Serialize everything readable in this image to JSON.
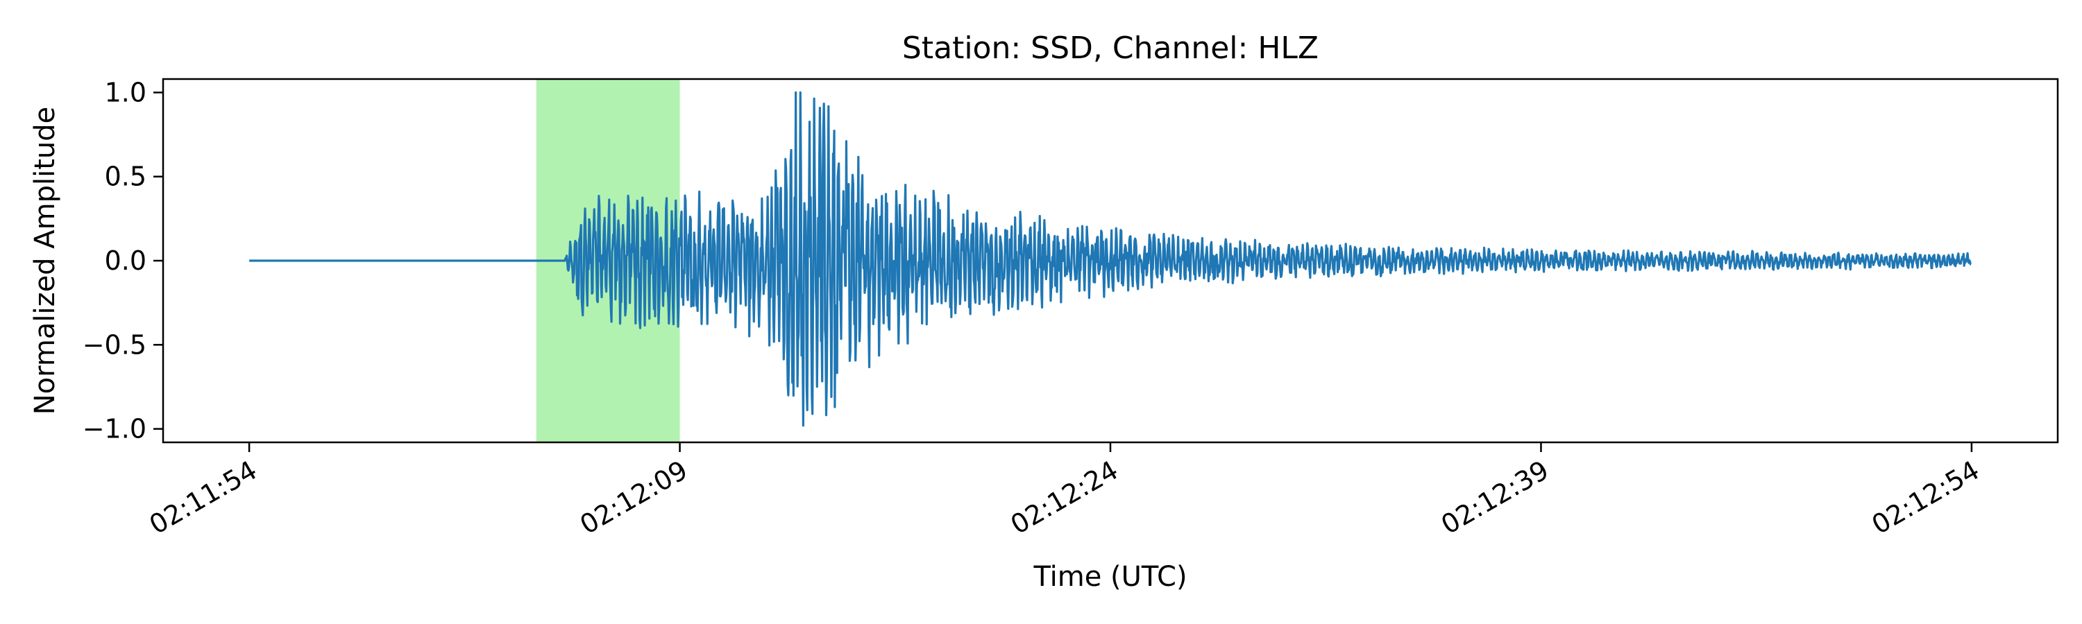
{
  "chart_data": {
    "type": "line",
    "title": "Station: SSD, Channel: HLZ",
    "xlabel": "Time (UTC)",
    "ylabel": "Normalized Amplitude",
    "x_unit": "seconds",
    "xlim": [
      "02:11:51",
      "02:12:57"
    ],
    "ylim": [
      -1.08,
      1.08
    ],
    "x_ticks": [
      {
        "time": "02:11:54",
        "label": "02:11:54"
      },
      {
        "time": "02:12:09",
        "label": "02:12:09"
      },
      {
        "time": "02:12:24",
        "label": "02:12:24"
      },
      {
        "time": "02:12:39",
        "label": "02:12:39"
      },
      {
        "time": "02:12:54",
        "label": "02:12:54"
      }
    ],
    "y_ticks": [
      1.0,
      0.5,
      0.0,
      -0.5,
      -1.0
    ],
    "y_tick_labels": [
      "1.0",
      "0.5",
      "0.0",
      "−0.5",
      "−1.0"
    ],
    "grid": false,
    "highlight_span": {
      "start": "02:12:04",
      "end": "02:12:09",
      "color": "#b2f2b0"
    },
    "series": [
      {
        "color": "#1f77b4",
        "start": "02:11:54",
        "end": "02:12:54",
        "onset": "02:12:05",
        "envelope": [
          [
            "02:11:54",
            0.0
          ],
          [
            "02:12:05",
            0.0
          ],
          [
            "02:12:05.5",
            0.3
          ],
          [
            "02:12:07",
            0.35
          ],
          [
            "02:12:09",
            0.38
          ],
          [
            "02:12:11",
            0.35
          ],
          [
            "02:12:12.5",
            0.55
          ],
          [
            "02:12:13",
            0.95
          ],
          [
            "02:12:14",
            0.85
          ],
          [
            "02:12:16",
            0.5
          ],
          [
            "02:12:18",
            0.35
          ],
          [
            "02:12:22",
            0.22
          ],
          [
            "02:12:27",
            0.12
          ],
          [
            "02:12:35",
            0.07
          ],
          [
            "02:12:45",
            0.05
          ],
          [
            "02:12:54",
            0.04
          ]
        ],
        "peaks": [
          [
            "02:12:13.2",
            1.0
          ],
          [
            "02:12:13.3",
            -0.98
          ],
          [
            "02:12:14.0",
            0.78
          ],
          [
            "02:12:14.4",
            -0.87
          ],
          [
            "02:12:14.8",
            0.71
          ]
        ]
      }
    ]
  }
}
